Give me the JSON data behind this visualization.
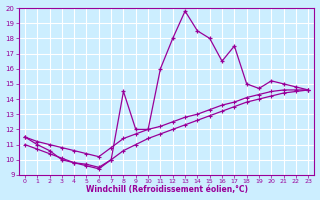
{
  "xlabel": "Windchill (Refroidissement éolien,°C)",
  "main_x": [
    0,
    1,
    2,
    3,
    4,
    5,
    6,
    7,
    8,
    9,
    10,
    11,
    12,
    13,
    14,
    15,
    16,
    17,
    18,
    19,
    20,
    21,
    22,
    23
  ],
  "main_y": [
    11.5,
    11.0,
    10.6,
    10.0,
    9.8,
    9.7,
    9.5,
    10.0,
    14.5,
    12.0,
    12.0,
    16.0,
    18.0,
    19.8,
    18.5,
    18.0,
    16.5,
    17.5,
    15.0,
    14.7,
    15.2,
    15.0,
    14.8,
    14.6
  ],
  "line2_x": [
    0,
    1,
    2,
    3,
    4,
    5,
    6,
    7,
    8,
    9,
    10,
    11,
    12,
    13,
    14,
    15,
    16,
    17,
    18,
    19,
    20,
    21,
    22,
    23
  ],
  "line2_y": [
    11.5,
    11.2,
    11.0,
    10.8,
    10.6,
    10.4,
    10.2,
    10.8,
    11.4,
    11.7,
    12.0,
    12.2,
    12.5,
    12.8,
    13.0,
    13.3,
    13.6,
    13.8,
    14.1,
    14.3,
    14.5,
    14.6,
    14.6,
    14.6
  ],
  "line3_x": [
    0,
    1,
    2,
    3,
    4,
    5,
    6,
    7,
    8,
    9,
    10,
    11,
    12,
    13,
    14,
    15,
    16,
    17,
    18,
    19,
    20,
    21,
    22,
    23
  ],
  "line3_y": [
    11.0,
    10.7,
    10.4,
    10.1,
    9.8,
    9.6,
    9.4,
    10.0,
    10.6,
    11.0,
    11.4,
    11.7,
    12.0,
    12.3,
    12.6,
    12.9,
    13.2,
    13.5,
    13.8,
    14.0,
    14.2,
    14.4,
    14.5,
    14.6
  ],
  "color": "#990099",
  "bg_color": "#cceeff",
  "grid_color": "#ffffff",
  "xlim": [
    -0.5,
    23.5
  ],
  "ylim": [
    9,
    20
  ],
  "xticks": [
    0,
    1,
    2,
    3,
    4,
    5,
    6,
    7,
    8,
    9,
    10,
    11,
    12,
    13,
    14,
    15,
    16,
    17,
    18,
    19,
    20,
    21,
    22,
    23
  ],
  "yticks": [
    9,
    10,
    11,
    12,
    13,
    14,
    15,
    16,
    17,
    18,
    19,
    20
  ]
}
